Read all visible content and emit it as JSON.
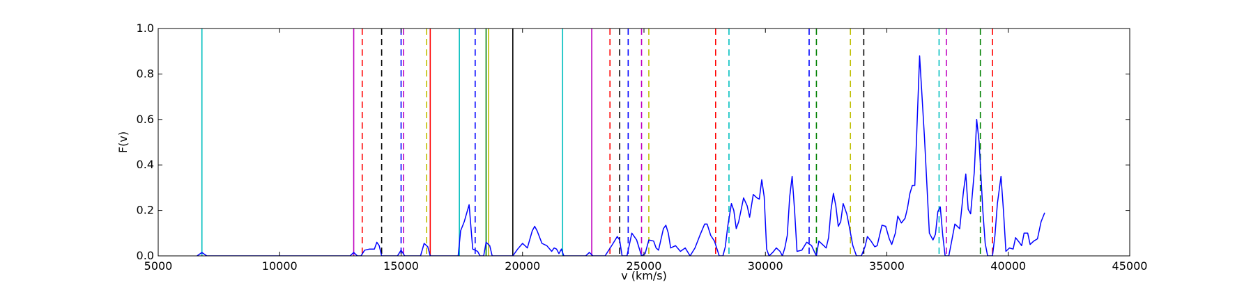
{
  "chart_data": {
    "type": "line",
    "title": "",
    "xlabel": "v (km/s)",
    "ylabel": "F(v)",
    "xlim": [
      5000,
      45000
    ],
    "ylim": [
      0,
      1.0
    ],
    "x_ticks": [
      5000,
      10000,
      15000,
      20000,
      25000,
      30000,
      35000,
      40000,
      45000
    ],
    "y_ticks": [
      0.0,
      0.2,
      0.4,
      0.6,
      0.8,
      1.0
    ],
    "x_tick_labels": [
      "5000",
      "10000",
      "15000",
      "20000",
      "25000",
      "30000",
      "35000",
      "40000",
      "45000"
    ],
    "y_tick_labels": [
      "0.0",
      "0.2",
      "0.4",
      "0.6",
      "0.8",
      "1.0"
    ],
    "grid": false,
    "series": [
      {
        "color": "#0000ff",
        "points": [
          [
            6600,
            0.0
          ],
          [
            6800,
            0.015
          ],
          [
            7000,
            0.0
          ],
          [
            12900,
            0.0
          ],
          [
            13050,
            0.015
          ],
          [
            13200,
            0.0
          ],
          [
            13350,
            0.0
          ],
          [
            13500,
            0.025
          ],
          [
            13700,
            0.03
          ],
          [
            13900,
            0.03
          ],
          [
            14000,
            0.06
          ],
          [
            14100,
            0.045
          ],
          [
            14200,
            0.0
          ],
          [
            14850,
            0.0
          ],
          [
            15000,
            0.025
          ],
          [
            15150,
            0.0
          ],
          [
            15800,
            0.0
          ],
          [
            15950,
            0.055
          ],
          [
            16100,
            0.04
          ],
          [
            16200,
            0.0
          ],
          [
            17350,
            0.0
          ],
          [
            17450,
            0.11
          ],
          [
            17600,
            0.15
          ],
          [
            17800,
            0.225
          ],
          [
            17950,
            0.03
          ],
          [
            18150,
            0.02
          ],
          [
            18250,
            0.0
          ],
          [
            18400,
            0.0
          ],
          [
            18500,
            0.06
          ],
          [
            18650,
            0.045
          ],
          [
            18750,
            0.0
          ],
          [
            19600,
            0.0
          ],
          [
            19800,
            0.03
          ],
          [
            20000,
            0.055
          ],
          [
            20200,
            0.035
          ],
          [
            20400,
            0.11
          ],
          [
            20500,
            0.13
          ],
          [
            20600,
            0.11
          ],
          [
            20800,
            0.055
          ],
          [
            21000,
            0.045
          ],
          [
            21200,
            0.02
          ],
          [
            21300,
            0.035
          ],
          [
            21400,
            0.03
          ],
          [
            21500,
            0.01
          ],
          [
            21600,
            0.03
          ],
          [
            21700,
            0.0
          ],
          [
            22600,
            0.0
          ],
          [
            22750,
            0.015
          ],
          [
            22900,
            0.0
          ],
          [
            23400,
            0.0
          ],
          [
            23700,
            0.05
          ],
          [
            23900,
            0.085
          ],
          [
            24000,
            0.07
          ],
          [
            24100,
            0.0
          ],
          [
            24300,
            0.0
          ],
          [
            24500,
            0.1
          ],
          [
            24700,
            0.07
          ],
          [
            24900,
            0.0
          ],
          [
            25050,
            0.01
          ],
          [
            25200,
            0.07
          ],
          [
            25400,
            0.065
          ],
          [
            25500,
            0.035
          ],
          [
            25600,
            0.025
          ],
          [
            25800,
            0.12
          ],
          [
            25900,
            0.135
          ],
          [
            26000,
            0.1
          ],
          [
            26100,
            0.035
          ],
          [
            26300,
            0.045
          ],
          [
            26500,
            0.02
          ],
          [
            26700,
            0.035
          ],
          [
            26900,
            0.0
          ],
          [
            27100,
            0.035
          ],
          [
            27300,
            0.09
          ],
          [
            27500,
            0.14
          ],
          [
            27600,
            0.14
          ],
          [
            27750,
            0.09
          ],
          [
            27900,
            0.065
          ],
          [
            28100,
            0.0
          ],
          [
            28250,
            0.0
          ],
          [
            28350,
            0.04
          ],
          [
            28450,
            0.13
          ],
          [
            28600,
            0.23
          ],
          [
            28700,
            0.2
          ],
          [
            28800,
            0.12
          ],
          [
            28900,
            0.15
          ],
          [
            29100,
            0.255
          ],
          [
            29250,
            0.22
          ],
          [
            29350,
            0.17
          ],
          [
            29500,
            0.27
          ],
          [
            29650,
            0.255
          ],
          [
            29750,
            0.25
          ],
          [
            29850,
            0.335
          ],
          [
            29950,
            0.26
          ],
          [
            30050,
            0.03
          ],
          [
            30150,
            0.0
          ],
          [
            30300,
            0.015
          ],
          [
            30450,
            0.035
          ],
          [
            30600,
            0.02
          ],
          [
            30700,
            0.0
          ],
          [
            30800,
            0.035
          ],
          [
            30900,
            0.09
          ],
          [
            31000,
            0.26
          ],
          [
            31100,
            0.35
          ],
          [
            31200,
            0.2
          ],
          [
            31300,
            0.02
          ],
          [
            31500,
            0.025
          ],
          [
            31700,
            0.06
          ],
          [
            31900,
            0.045
          ],
          [
            32050,
            0.01
          ],
          [
            32100,
            0.0
          ],
          [
            32200,
            0.065
          ],
          [
            32350,
            0.05
          ],
          [
            32500,
            0.035
          ],
          [
            32600,
            0.08
          ],
          [
            32700,
            0.2
          ],
          [
            32800,
            0.275
          ],
          [
            32900,
            0.22
          ],
          [
            33000,
            0.13
          ],
          [
            33100,
            0.15
          ],
          [
            33200,
            0.23
          ],
          [
            33350,
            0.185
          ],
          [
            33450,
            0.13
          ],
          [
            33600,
            0.045
          ],
          [
            33750,
            0.0
          ],
          [
            33950,
            0.0
          ],
          [
            34100,
            0.04
          ],
          [
            34200,
            0.085
          ],
          [
            34350,
            0.065
          ],
          [
            34500,
            0.04
          ],
          [
            34600,
            0.045
          ],
          [
            34800,
            0.135
          ],
          [
            34950,
            0.13
          ],
          [
            35100,
            0.075
          ],
          [
            35200,
            0.05
          ],
          [
            35350,
            0.1
          ],
          [
            35450,
            0.175
          ],
          [
            35600,
            0.145
          ],
          [
            35750,
            0.165
          ],
          [
            35850,
            0.21
          ],
          [
            35950,
            0.275
          ],
          [
            36050,
            0.31
          ],
          [
            36150,
            0.31
          ],
          [
            36350,
            0.88
          ],
          [
            36550,
            0.52
          ],
          [
            36750,
            0.1
          ],
          [
            36900,
            0.07
          ],
          [
            37000,
            0.095
          ],
          [
            37100,
            0.195
          ],
          [
            37200,
            0.215
          ],
          [
            37300,
            0.09
          ],
          [
            37400,
            0.0
          ],
          [
            37550,
            0.0
          ],
          [
            37650,
            0.055
          ],
          [
            37800,
            0.14
          ],
          [
            38000,
            0.12
          ],
          [
            38150,
            0.28
          ],
          [
            38250,
            0.36
          ],
          [
            38350,
            0.205
          ],
          [
            38450,
            0.185
          ],
          [
            38600,
            0.37
          ],
          [
            38700,
            0.6
          ],
          [
            38800,
            0.5
          ],
          [
            38950,
            0.2
          ],
          [
            39050,
            0.055
          ],
          [
            39150,
            0.0
          ],
          [
            39350,
            0.0
          ],
          [
            39450,
            0.09
          ],
          [
            39550,
            0.23
          ],
          [
            39700,
            0.35
          ],
          [
            39800,
            0.2
          ],
          [
            39900,
            0.02
          ],
          [
            40050,
            0.035
          ],
          [
            40200,
            0.03
          ],
          [
            40300,
            0.08
          ],
          [
            40450,
            0.06
          ],
          [
            40550,
            0.045
          ],
          [
            40650,
            0.1
          ],
          [
            40800,
            0.1
          ],
          [
            40900,
            0.05
          ],
          [
            41050,
            0.065
          ],
          [
            41200,
            0.075
          ],
          [
            41350,
            0.15
          ],
          [
            41500,
            0.19
          ]
        ]
      }
    ],
    "vertical_lines": [
      {
        "x": 6800,
        "color": "#00bfbf",
        "style": "solid"
      },
      {
        "x": 13050,
        "color": "#bf00bf",
        "style": "solid"
      },
      {
        "x": 13400,
        "color": "#ff0000",
        "style": "dashed"
      },
      {
        "x": 14200,
        "color": "#000000",
        "style": "dashed"
      },
      {
        "x": 15000,
        "color": "#0000ff",
        "style": "dashed"
      },
      {
        "x": 15100,
        "color": "#bf00bf",
        "style": "dashed"
      },
      {
        "x": 16050,
        "color": "#bfbf00",
        "style": "dashed"
      },
      {
        "x": 16200,
        "color": "#ff0000",
        "style": "solid"
      },
      {
        "x": 17400,
        "color": "#00bfbf",
        "style": "solid"
      },
      {
        "x": 18050,
        "color": "#0000ff",
        "style": "dashed"
      },
      {
        "x": 18500,
        "color": "#008000",
        "style": "solid"
      },
      {
        "x": 18600,
        "color": "#bfbf00",
        "style": "solid"
      },
      {
        "x": 19600,
        "color": "#000000",
        "style": "solid"
      },
      {
        "x": 21650,
        "color": "#00bfbf",
        "style": "solid"
      },
      {
        "x": 22850,
        "color": "#bf00bf",
        "style": "solid"
      },
      {
        "x": 23600,
        "color": "#ff0000",
        "style": "dashed"
      },
      {
        "x": 24000,
        "color": "#000000",
        "style": "dashed"
      },
      {
        "x": 24350,
        "color": "#0000ff",
        "style": "dashed"
      },
      {
        "x": 24900,
        "color": "#bf00bf",
        "style": "dashed"
      },
      {
        "x": 25200,
        "color": "#bfbf00",
        "style": "dashed"
      },
      {
        "x": 27950,
        "color": "#ff0000",
        "style": "dashed"
      },
      {
        "x": 28500,
        "color": "#00bfbf",
        "style": "dashed"
      },
      {
        "x": 31800,
        "color": "#0000ff",
        "style": "dashed"
      },
      {
        "x": 32100,
        "color": "#008000",
        "style": "dashed"
      },
      {
        "x": 33500,
        "color": "#bfbf00",
        "style": "dashed"
      },
      {
        "x": 34050,
        "color": "#000000",
        "style": "dashed"
      },
      {
        "x": 37150,
        "color": "#00bfbf",
        "style": "dashed"
      },
      {
        "x": 37450,
        "color": "#bf00bf",
        "style": "dashed"
      },
      {
        "x": 38850,
        "color": "#008000",
        "style": "dashed"
      },
      {
        "x": 39350,
        "color": "#ff0000",
        "style": "dashed"
      }
    ]
  }
}
